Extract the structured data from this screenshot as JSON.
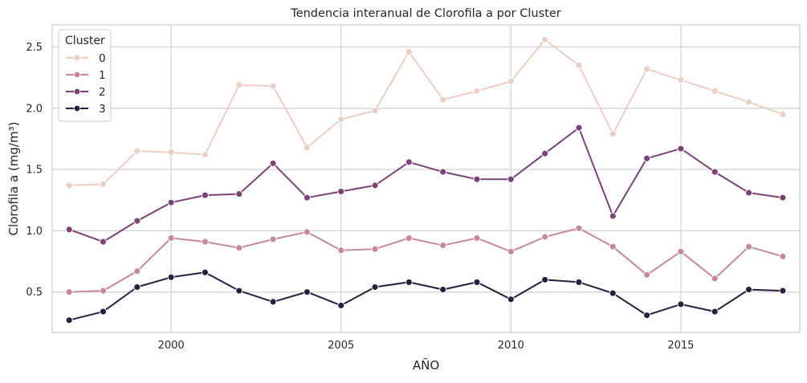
{
  "chart_data": {
    "type": "line",
    "title": "Tendencia interanual de Clorofila a por Cluster",
    "xlabel": "AÑO",
    "ylabel": "Clorofila a (mg/m³)",
    "xlim": [
      1996.5,
      2018.5
    ],
    "ylim": [
      0.17,
      2.68
    ],
    "x_ticks": [
      2000,
      2005,
      2010,
      2015
    ],
    "y_ticks": [
      0.5,
      1.0,
      1.5,
      2.0,
      2.5
    ],
    "grid": true,
    "legend": {
      "title": "Cluster",
      "position": "top-left"
    },
    "x": [
      1997,
      1998,
      1999,
      2000,
      2001,
      2002,
      2003,
      2004,
      2005,
      2006,
      2007,
      2008,
      2009,
      2010,
      2011,
      2012,
      2013,
      2014,
      2015,
      2016,
      2017,
      2018
    ],
    "series": [
      {
        "name": "0",
        "color": "#eccec5",
        "values": [
          1.37,
          1.38,
          1.65,
          1.64,
          1.62,
          2.19,
          2.18,
          1.68,
          1.91,
          1.98,
          2.46,
          2.07,
          2.14,
          2.22,
          2.56,
          2.35,
          1.79,
          2.32,
          2.23,
          2.14,
          2.05,
          1.95
        ]
      },
      {
        "name": "1",
        "color": "#c7879f",
        "values": [
          0.5,
          0.51,
          0.67,
          0.94,
          0.91,
          0.86,
          0.93,
          0.99,
          0.84,
          0.85,
          0.94,
          0.88,
          0.94,
          0.83,
          0.95,
          1.02,
          0.87,
          0.64,
          0.83,
          0.61,
          0.87,
          0.79
        ]
      },
      {
        "name": "2",
        "color": "#7b4275",
        "values": [
          1.01,
          0.91,
          1.08,
          1.23,
          1.29,
          1.3,
          1.55,
          1.27,
          1.32,
          1.37,
          1.56,
          1.48,
          1.42,
          1.42,
          1.63,
          1.84,
          1.12,
          1.59,
          1.67,
          1.48,
          1.31,
          1.27
        ]
      },
      {
        "name": "3",
        "color": "#2b1d40",
        "values": [
          0.27,
          0.34,
          0.54,
          0.62,
          0.66,
          0.51,
          0.42,
          0.5,
          0.39,
          0.54,
          0.58,
          0.52,
          0.58,
          0.44,
          0.6,
          0.58,
          0.49,
          0.31,
          0.4,
          0.34,
          0.52,
          0.51
        ]
      }
    ]
  }
}
